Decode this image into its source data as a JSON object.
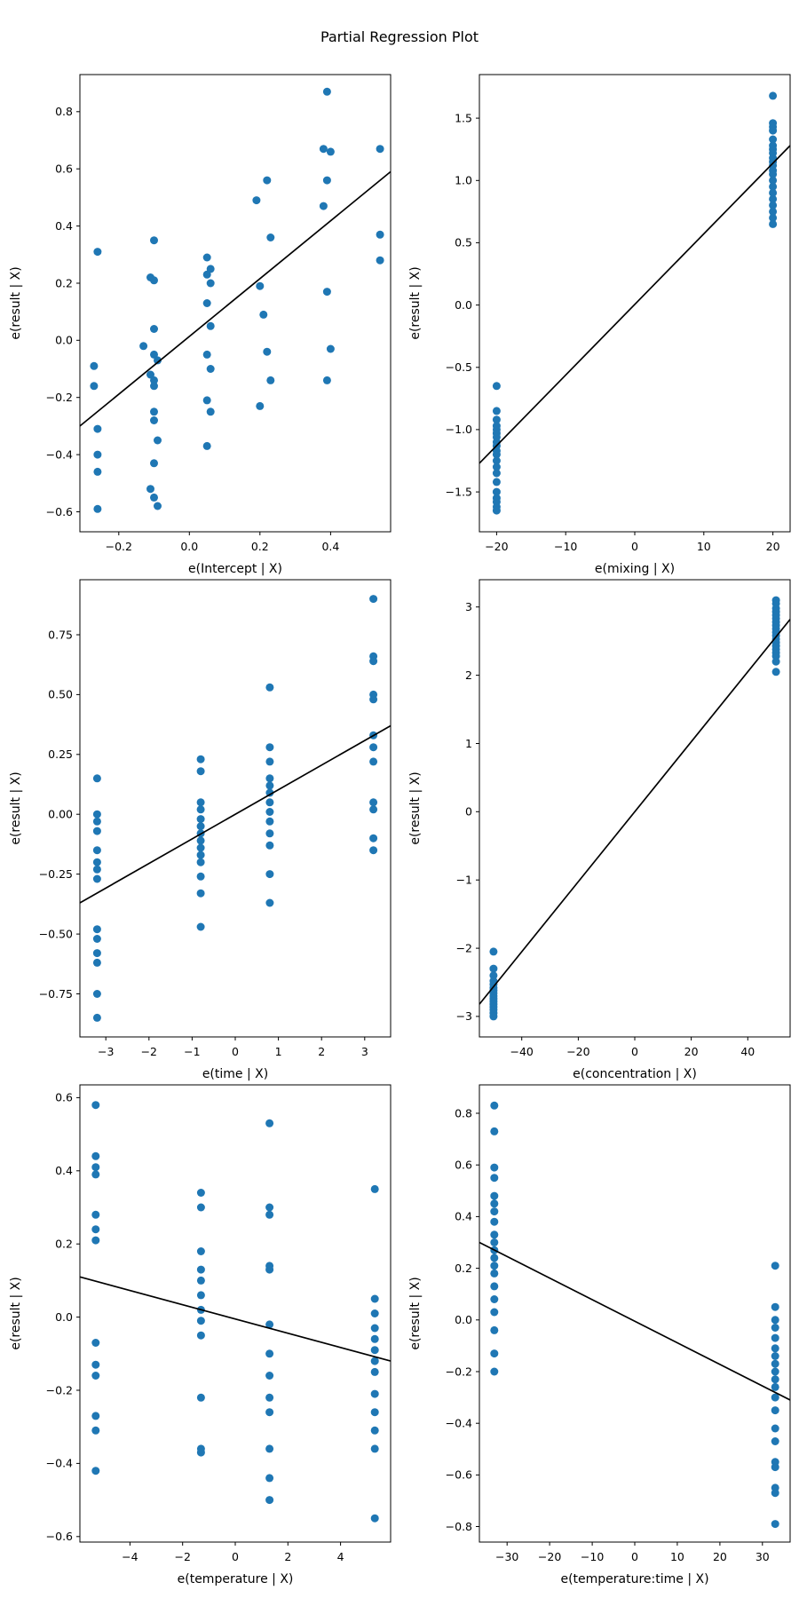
{
  "suptitle": "Partial Regression Plot",
  "colors": {
    "marker": "#1f77b4",
    "line": "#000000",
    "frame": "#000000"
  },
  "chart_data": [
    {
      "type": "scatter",
      "key": "intercept",
      "xlabel": "e(Intercept | X)",
      "ylabel": "e(result | X)",
      "xlim": [
        -0.31,
        0.57
      ],
      "ylim": [
        -0.67,
        0.93
      ],
      "xticks": [
        -0.2,
        0.0,
        0.2,
        0.4
      ],
      "xtick_labels": [
        "−0.2",
        "0.0",
        "0.2",
        "0.4"
      ],
      "yticks": [
        -0.6,
        -0.4,
        -0.2,
        0.0,
        0.2,
        0.4,
        0.6,
        0.8
      ],
      "ytick_labels": [
        "−0.6",
        "−0.4",
        "−0.2",
        "0.0",
        "0.2",
        "0.4",
        "0.6",
        "0.8"
      ],
      "line": {
        "x": [
          -0.31,
          0.57
        ],
        "y": [
          -0.3,
          0.59
        ]
      },
      "points": [
        [
          -0.26,
          0.31
        ],
        [
          -0.27,
          -0.09
        ],
        [
          -0.27,
          -0.16
        ],
        [
          -0.26,
          -0.31
        ],
        [
          -0.26,
          -0.4
        ],
        [
          -0.26,
          -0.46
        ],
        [
          -0.26,
          -0.59
        ],
        [
          -0.13,
          -0.02
        ],
        [
          -0.1,
          0.35
        ],
        [
          -0.11,
          0.22
        ],
        [
          -0.1,
          0.21
        ],
        [
          -0.1,
          0.04
        ],
        [
          -0.1,
          -0.05
        ],
        [
          -0.09,
          -0.07
        ],
        [
          -0.11,
          -0.12
        ],
        [
          -0.1,
          -0.14
        ],
        [
          -0.1,
          -0.16
        ],
        [
          -0.1,
          -0.25
        ],
        [
          -0.1,
          -0.28
        ],
        [
          -0.09,
          -0.35
        ],
        [
          -0.1,
          -0.43
        ],
        [
          -0.11,
          -0.52
        ],
        [
          -0.1,
          -0.55
        ],
        [
          -0.09,
          -0.58
        ],
        [
          0.05,
          0.29
        ],
        [
          0.06,
          0.25
        ],
        [
          0.05,
          0.23
        ],
        [
          0.06,
          0.2
        ],
        [
          0.05,
          0.13
        ],
        [
          0.06,
          0.05
        ],
        [
          0.05,
          -0.05
        ],
        [
          0.06,
          -0.1
        ],
        [
          0.05,
          -0.21
        ],
        [
          0.06,
          -0.25
        ],
        [
          0.05,
          -0.37
        ],
        [
          0.19,
          0.49
        ],
        [
          0.22,
          0.56
        ],
        [
          0.23,
          0.36
        ],
        [
          0.2,
          0.19
        ],
        [
          0.21,
          0.09
        ],
        [
          0.22,
          -0.04
        ],
        [
          0.23,
          -0.14
        ],
        [
          0.2,
          -0.23
        ],
        [
          0.39,
          0.87
        ],
        [
          0.38,
          0.67
        ],
        [
          0.4,
          0.66
        ],
        [
          0.39,
          0.56
        ],
        [
          0.38,
          0.47
        ],
        [
          0.39,
          0.17
        ],
        [
          0.4,
          -0.03
        ],
        [
          0.39,
          -0.14
        ],
        [
          0.54,
          0.67
        ],
        [
          0.54,
          0.37
        ],
        [
          0.54,
          0.28
        ]
      ]
    },
    {
      "type": "scatter",
      "key": "mixing",
      "xlabel": "e(mixing | X)",
      "ylabel": "e(result | X)",
      "xlim": [
        -22.5,
        22.5
      ],
      "ylim": [
        -1.82,
        1.85
      ],
      "xticks": [
        -20,
        -10,
        0,
        10,
        20
      ],
      "xtick_labels": [
        "−20",
        "−10",
        "0",
        "10",
        "20"
      ],
      "yticks": [
        -1.5,
        -1.0,
        -0.5,
        0.0,
        0.5,
        1.0,
        1.5
      ],
      "ytick_labels": [
        "−1.5",
        "−1.0",
        "−0.5",
        "0.0",
        "0.5",
        "1.0",
        "1.5"
      ],
      "line": {
        "x": [
          -22.5,
          22.5
        ],
        "y": [
          -1.27,
          1.28
        ]
      },
      "points": [
        [
          -20,
          -0.65
        ],
        [
          -20,
          -0.85
        ],
        [
          -20,
          -0.92
        ],
        [
          -20,
          -0.97
        ],
        [
          -20,
          -1.0
        ],
        [
          -20,
          -1.03
        ],
        [
          -20,
          -1.06
        ],
        [
          -20,
          -1.1
        ],
        [
          -20,
          -1.13
        ],
        [
          -20,
          -1.17
        ],
        [
          -20,
          -1.2
        ],
        [
          -20,
          -1.25
        ],
        [
          -20,
          -1.3
        ],
        [
          -20,
          -1.35
        ],
        [
          -20,
          -1.42
        ],
        [
          -20,
          -1.5
        ],
        [
          -20,
          -1.55
        ],
        [
          -20,
          -1.58
        ],
        [
          -20,
          -1.62
        ],
        [
          -20,
          -1.65
        ],
        [
          20,
          1.68
        ],
        [
          20,
          1.46
        ],
        [
          20,
          1.43
        ],
        [
          20,
          1.4
        ],
        [
          20,
          1.33
        ],
        [
          20,
          1.28
        ],
        [
          20,
          1.25
        ],
        [
          20,
          1.22
        ],
        [
          20,
          1.18
        ],
        [
          20,
          1.15
        ],
        [
          20,
          1.12
        ],
        [
          20,
          1.08
        ],
        [
          20,
          1.05
        ],
        [
          20,
          1.0
        ],
        [
          20,
          0.95
        ],
        [
          20,
          0.9
        ],
        [
          20,
          0.85
        ],
        [
          20,
          0.8
        ],
        [
          20,
          0.75
        ],
        [
          20,
          0.7
        ],
        [
          20,
          0.65
        ]
      ]
    },
    {
      "type": "scatter",
      "key": "time",
      "xlabel": "e(time | X)",
      "ylabel": "e(result | X)",
      "xlim": [
        -3.6,
        3.6
      ],
      "ylim": [
        -0.93,
        0.98
      ],
      "xticks": [
        -3,
        -2,
        -1,
        0,
        1,
        2,
        3
      ],
      "xtick_labels": [
        "−3",
        "−2",
        "−1",
        "0",
        "1",
        "2",
        "3"
      ],
      "yticks": [
        -0.75,
        -0.5,
        -0.25,
        0.0,
        0.25,
        0.5,
        0.75
      ],
      "ytick_labels": [
        "−0.75",
        "−0.50",
        "−0.25",
        "0.00",
        "0.25",
        "0.50",
        "0.75"
      ],
      "line": {
        "x": [
          -3.6,
          3.6
        ],
        "y": [
          -0.37,
          0.37
        ]
      },
      "points": [
        [
          -3.2,
          0.15
        ],
        [
          -3.2,
          0.0
        ],
        [
          -3.2,
          -0.03
        ],
        [
          -3.2,
          -0.07
        ],
        [
          -3.2,
          -0.15
        ],
        [
          -3.2,
          -0.2
        ],
        [
          -3.2,
          -0.23
        ],
        [
          -3.2,
          -0.27
        ],
        [
          -3.2,
          -0.48
        ],
        [
          -3.2,
          -0.52
        ],
        [
          -3.2,
          -0.58
        ],
        [
          -3.2,
          -0.62
        ],
        [
          -3.2,
          -0.75
        ],
        [
          -3.2,
          -0.85
        ],
        [
          -0.8,
          0.23
        ],
        [
          -0.8,
          0.18
        ],
        [
          -0.8,
          0.05
        ],
        [
          -0.8,
          0.02
        ],
        [
          -0.8,
          -0.02
        ],
        [
          -0.8,
          -0.05
        ],
        [
          -0.8,
          -0.08
        ],
        [
          -0.8,
          -0.11
        ],
        [
          -0.8,
          -0.14
        ],
        [
          -0.8,
          -0.17
        ],
        [
          -0.8,
          -0.2
        ],
        [
          -0.8,
          -0.26
        ],
        [
          -0.8,
          -0.33
        ],
        [
          -0.8,
          -0.47
        ],
        [
          0.8,
          0.53
        ],
        [
          0.8,
          0.28
        ],
        [
          0.8,
          0.22
        ],
        [
          0.8,
          0.15
        ],
        [
          0.8,
          0.12
        ],
        [
          0.8,
          0.09
        ],
        [
          0.8,
          0.05
        ],
        [
          0.8,
          0.01
        ],
        [
          0.8,
          -0.03
        ],
        [
          0.8,
          -0.08
        ],
        [
          0.8,
          -0.13
        ],
        [
          0.8,
          -0.25
        ],
        [
          0.8,
          -0.37
        ],
        [
          3.2,
          0.9
        ],
        [
          3.2,
          0.66
        ],
        [
          3.2,
          0.64
        ],
        [
          3.2,
          0.5
        ],
        [
          3.2,
          0.48
        ],
        [
          3.2,
          0.33
        ],
        [
          3.2,
          0.28
        ],
        [
          3.2,
          0.22
        ],
        [
          3.2,
          0.05
        ],
        [
          3.2,
          0.02
        ],
        [
          3.2,
          -0.1
        ],
        [
          3.2,
          -0.15
        ]
      ]
    },
    {
      "type": "scatter",
      "key": "concentration",
      "xlabel": "e(concentration | X)",
      "ylabel": "e(result | X)",
      "xlim": [
        -55,
        55
      ],
      "ylim": [
        -3.3,
        3.4
      ],
      "xticks": [
        -40,
        -20,
        0,
        20,
        40
      ],
      "xtick_labels": [
        "−40",
        "−20",
        "0",
        "20",
        "40"
      ],
      "yticks": [
        -3,
        -2,
        -1,
        0,
        1,
        2,
        3
      ],
      "ytick_labels": [
        "−3",
        "−2",
        "−1",
        "0",
        "1",
        "2",
        "3"
      ],
      "line": {
        "x": [
          -55,
          55
        ],
        "y": [
          -2.82,
          2.82
        ]
      },
      "points": [
        [
          -50,
          -2.05
        ],
        [
          -50,
          -2.3
        ],
        [
          -50,
          -2.4
        ],
        [
          -50,
          -2.48
        ],
        [
          -50,
          -2.53
        ],
        [
          -50,
          -2.58
        ],
        [
          -50,
          -2.62
        ],
        [
          -50,
          -2.66
        ],
        [
          -50,
          -2.7
        ],
        [
          -50,
          -2.74
        ],
        [
          -50,
          -2.78
        ],
        [
          -50,
          -2.82
        ],
        [
          -50,
          -2.86
        ],
        [
          -50,
          -2.9
        ],
        [
          -50,
          -2.95
        ],
        [
          -50,
          -3.0
        ],
        [
          50,
          3.1
        ],
        [
          50,
          3.05
        ],
        [
          50,
          2.98
        ],
        [
          50,
          2.93
        ],
        [
          50,
          2.88
        ],
        [
          50,
          2.83
        ],
        [
          50,
          2.78
        ],
        [
          50,
          2.73
        ],
        [
          50,
          2.68
        ],
        [
          50,
          2.63
        ],
        [
          50,
          2.58
        ],
        [
          50,
          2.53
        ],
        [
          50,
          2.48
        ],
        [
          50,
          2.43
        ],
        [
          50,
          2.38
        ],
        [
          50,
          2.33
        ],
        [
          50,
          2.28
        ],
        [
          50,
          2.2
        ],
        [
          50,
          2.05
        ]
      ]
    },
    {
      "type": "scatter",
      "key": "temperature",
      "xlabel": "e(temperature | X)",
      "ylabel": "e(result | X)",
      "xlim": [
        -5.9,
        5.9
      ],
      "ylim": [
        -0.615,
        0.635
      ],
      "xticks": [
        -4,
        -2,
        0,
        2,
        4
      ],
      "xtick_labels": [
        "−4",
        "−2",
        "0",
        "2",
        "4"
      ],
      "yticks": [
        -0.6,
        -0.4,
        -0.2,
        0.0,
        0.2,
        0.4,
        0.6
      ],
      "ytick_labels": [
        "−0.6",
        "−0.4",
        "−0.2",
        "0.0",
        "0.2",
        "0.4",
        "0.6"
      ],
      "line": {
        "x": [
          -5.9,
          5.9
        ],
        "y": [
          0.11,
          -0.12
        ]
      },
      "points": [
        [
          -5.3,
          0.58
        ],
        [
          -5.3,
          0.44
        ],
        [
          -5.3,
          0.41
        ],
        [
          -5.3,
          0.39
        ],
        [
          -5.3,
          0.28
        ],
        [
          -5.3,
          0.24
        ],
        [
          -5.3,
          0.21
        ],
        [
          -5.3,
          -0.07
        ],
        [
          -5.3,
          -0.13
        ],
        [
          -5.3,
          -0.16
        ],
        [
          -5.3,
          -0.27
        ],
        [
          -5.3,
          -0.31
        ],
        [
          -5.3,
          -0.42
        ],
        [
          -1.3,
          0.34
        ],
        [
          -1.3,
          0.3
        ],
        [
          -1.3,
          0.18
        ],
        [
          -1.3,
          0.13
        ],
        [
          -1.3,
          0.1
        ],
        [
          -1.3,
          0.06
        ],
        [
          -1.3,
          0.02
        ],
        [
          -1.3,
          -0.01
        ],
        [
          -1.3,
          -0.05
        ],
        [
          -1.3,
          -0.22
        ],
        [
          -1.3,
          -0.36
        ],
        [
          -1.3,
          -0.37
        ],
        [
          1.3,
          0.53
        ],
        [
          1.3,
          0.3
        ],
        [
          1.3,
          0.28
        ],
        [
          1.3,
          0.14
        ],
        [
          1.3,
          0.13
        ],
        [
          1.3,
          -0.02
        ],
        [
          1.3,
          -0.1
        ],
        [
          1.3,
          -0.16
        ],
        [
          1.3,
          -0.22
        ],
        [
          1.3,
          -0.26
        ],
        [
          1.3,
          -0.36
        ],
        [
          1.3,
          -0.44
        ],
        [
          1.3,
          -0.5
        ],
        [
          5.3,
          0.35
        ],
        [
          5.3,
          0.05
        ],
        [
          5.3,
          0.01
        ],
        [
          5.3,
          -0.03
        ],
        [
          5.3,
          -0.06
        ],
        [
          5.3,
          -0.09
        ],
        [
          5.3,
          -0.12
        ],
        [
          5.3,
          -0.15
        ],
        [
          5.3,
          -0.21
        ],
        [
          5.3,
          -0.26
        ],
        [
          5.3,
          -0.31
        ],
        [
          5.3,
          -0.36
        ],
        [
          5.3,
          -0.55
        ]
      ]
    },
    {
      "type": "scatter",
      "key": "temperature-time",
      "xlabel": "e(temperature:time | X)",
      "ylabel": "e(result | X)",
      "xlim": [
        -36.5,
        36.5
      ],
      "ylim": [
        -0.86,
        0.91
      ],
      "xticks": [
        -30,
        -20,
        -10,
        0,
        10,
        20,
        30
      ],
      "xtick_labels": [
        "−30",
        "−20",
        "−10",
        "0",
        "10",
        "20",
        "30"
      ],
      "yticks": [
        -0.8,
        -0.6,
        -0.4,
        -0.2,
        0.0,
        0.2,
        0.4,
        0.6,
        0.8
      ],
      "ytick_labels": [
        "−0.8",
        "−0.6",
        "−0.4",
        "−0.2",
        "0.0",
        "0.2",
        "0.4",
        "0.6",
        "0.8"
      ],
      "line": {
        "x": [
          -36.5,
          36.5
        ],
        "y": [
          0.3,
          -0.31
        ]
      },
      "points": [
        [
          -33,
          0.83
        ],
        [
          -33,
          0.73
        ],
        [
          -33,
          0.59
        ],
        [
          -33,
          0.55
        ],
        [
          -33,
          0.48
        ],
        [
          -33,
          0.45
        ],
        [
          -33,
          0.42
        ],
        [
          -33,
          0.38
        ],
        [
          -33,
          0.33
        ],
        [
          -33,
          0.3
        ],
        [
          -33,
          0.27
        ],
        [
          -33,
          0.24
        ],
        [
          -33,
          0.21
        ],
        [
          -33,
          0.18
        ],
        [
          -33,
          0.13
        ],
        [
          -33,
          0.08
        ],
        [
          -33,
          0.03
        ],
        [
          -33,
          -0.04
        ],
        [
          -33,
          -0.13
        ],
        [
          -33,
          -0.2
        ],
        [
          33,
          0.21
        ],
        [
          33,
          0.05
        ],
        [
          33,
          0.0
        ],
        [
          33,
          -0.03
        ],
        [
          33,
          -0.07
        ],
        [
          33,
          -0.11
        ],
        [
          33,
          -0.14
        ],
        [
          33,
          -0.17
        ],
        [
          33,
          -0.2
        ],
        [
          33,
          -0.23
        ],
        [
          33,
          -0.26
        ],
        [
          33,
          -0.3
        ],
        [
          33,
          -0.35
        ],
        [
          33,
          -0.42
        ],
        [
          33,
          -0.47
        ],
        [
          33,
          -0.55
        ],
        [
          33,
          -0.57
        ],
        [
          33,
          -0.65
        ],
        [
          33,
          -0.67
        ],
        [
          33,
          -0.79
        ]
      ]
    }
  ]
}
